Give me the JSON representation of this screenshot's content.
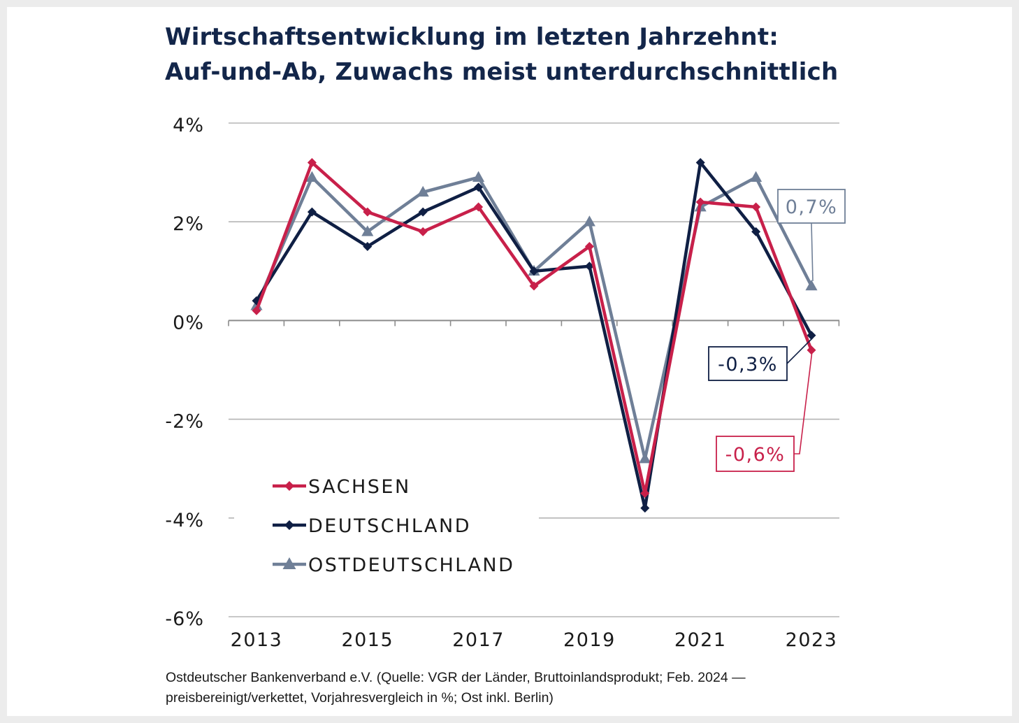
{
  "title": {
    "line1": "Wirtschaftsentwicklung im letzten Jahrzehnt:",
    "line2": "Auf-und-Ab, Zuwachs meist unterdurchschnittlich"
  },
  "source": {
    "line1": "Ostdeutscher Bankenverband e.V. (Quelle: VGR der Länder, Bruttoinlandsprodukt; Feb. 2024 —",
    "line2": "preisbereinigt/verkettet, Vorjahresvergleich in %; Ost inkl. Berlin)"
  },
  "colors": {
    "sachsen": "#c8204a",
    "deutschland": "#0f1f44",
    "ostdeutschland": "#6f7f97",
    "grid": "#b5b5b5",
    "axis": "#8c8c8c",
    "tick_text": "#1a1a1a"
  },
  "chart_data": {
    "type": "line",
    "x": [
      2013,
      2014,
      2015,
      2016,
      2017,
      2018,
      2019,
      2020,
      2021,
      2022,
      2023
    ],
    "x_tick_labels": [
      "2013",
      "2015",
      "2017",
      "2019",
      "2021",
      "2023"
    ],
    "y_tick_labels": [
      "4%",
      "2%",
      "0%",
      "-2%",
      "-4%",
      "-6%"
    ],
    "y_ticks": [
      4,
      2,
      0,
      -2,
      -4,
      -6
    ],
    "ylim": [
      -6,
      4
    ],
    "grid": true,
    "legend_position": "lower-left",
    "series": [
      {
        "key": "sachsen",
        "name": "SACHSEN",
        "marker": "diamond",
        "values": [
          0.2,
          3.2,
          2.2,
          1.8,
          2.3,
          0.7,
          1.5,
          -3.5,
          2.4,
          2.3,
          -0.6
        ]
      },
      {
        "key": "deutschland",
        "name": "DEUTSCHLAND",
        "marker": "diamond",
        "values": [
          0.4,
          2.2,
          1.5,
          2.2,
          2.7,
          1.0,
          1.1,
          -3.8,
          3.2,
          1.8,
          -0.3
        ]
      },
      {
        "key": "ostdeutschland",
        "name": "OSTDEUTSCHLAND",
        "marker": "triangle",
        "values": [
          0.3,
          2.9,
          1.8,
          2.6,
          2.9,
          1.0,
          2.0,
          -2.8,
          2.3,
          2.9,
          0.7
        ]
      }
    ],
    "annotations": [
      {
        "series": "ostdeutschland",
        "text": "0,7%"
      },
      {
        "series": "deutschland",
        "text": "-0,3%"
      },
      {
        "series": "sachsen",
        "text": "-0,6%"
      }
    ]
  }
}
